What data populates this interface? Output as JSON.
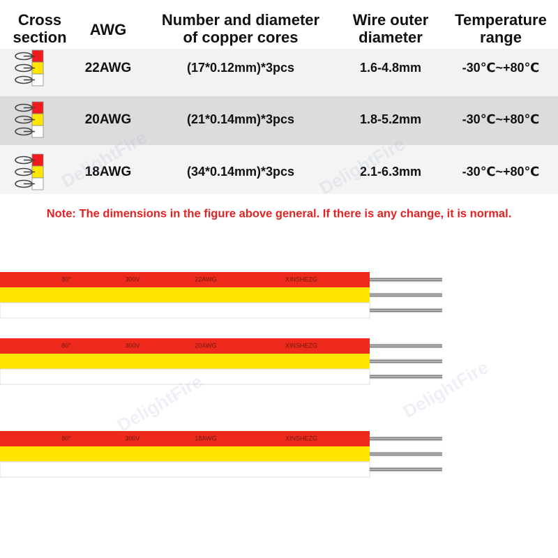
{
  "header": {
    "columns": [
      [
        "Cross",
        "section"
      ],
      [
        "AWG"
      ],
      [
        "Number and diameter",
        "of copper cores"
      ],
      [
        "Wire outer",
        "diameter"
      ],
      [
        "Temperature",
        "range"
      ]
    ]
  },
  "table": {
    "rows": [
      [
        "22AWG",
        "(17*0.12mm)*3pcs",
        "1.6-4.8mm",
        "-30℃~+80℃"
      ],
      [
        "20AWG",
        "(21*0.14mm)*3pcs",
        "1.8-5.2mm",
        "-30℃~+80℃"
      ],
      [
        "18AWG",
        "(34*0.14mm)*3pcs",
        "2.1-6.3mm",
        "-30℃~+80℃"
      ]
    ]
  },
  "note": "Note: The dimensions in the figure above general. If there is any change, it is normal.",
  "wires": [
    {
      "labels": [
        "80°",
        "300V",
        "22AWG",
        "XINSHEZG"
      ]
    },
    {
      "labels": [
        "80°",
        "300V",
        "20AWG",
        "XINSHEZG"
      ]
    },
    {
      "labels": [
        "80°",
        "300V",
        "18AWG",
        "XINSHEZG"
      ]
    }
  ],
  "watermark": "DelightFire"
}
